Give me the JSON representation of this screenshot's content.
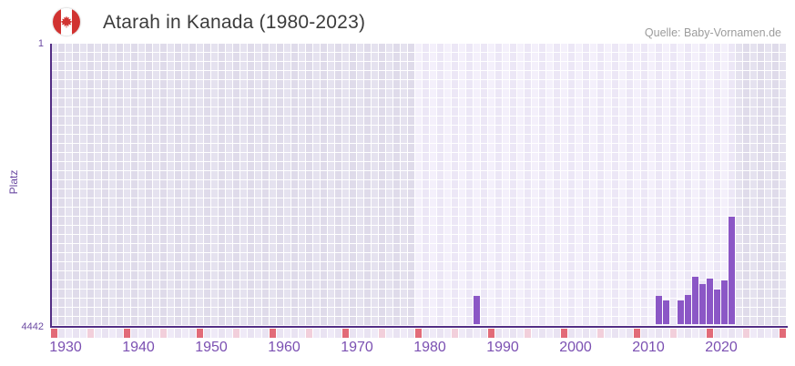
{
  "header": {
    "title": "Atarah in Kanada (1980-2023)",
    "source": "Quelle: Baby-Vornamen.de",
    "flag": "canada"
  },
  "chart_data": {
    "type": "bar",
    "title": "Atarah in Kanada (1980-2023)",
    "source": "Quelle: Baby-Vornamen.de",
    "xlabel": "",
    "ylabel": "Platz",
    "y_axis": {
      "min": 1,
      "max": 4442,
      "inverted": true,
      "tick_top": "1",
      "tick_bottom": "4442"
    },
    "x_axis": {
      "start": 1930,
      "end": 2030,
      "tick_labels": [
        "1930",
        "1940",
        "1950",
        "1960",
        "1970",
        "1980",
        "1990",
        "2000",
        "2010",
        "2020"
      ],
      "decade_marker_years": [
        1930,
        1940,
        1950,
        1960,
        1970,
        1980,
        1990,
        2000,
        2010,
        2020,
        2030
      ],
      "half_decade_marker_years": [
        1935,
        1945,
        1955,
        1965,
        1975,
        1985,
        1995,
        2005,
        2015,
        2025
      ]
    },
    "highlight_range": [
      1980,
      2023
    ],
    "grid": true,
    "legend": false,
    "points": [
      {
        "year": 1988,
        "rank": 3970
      },
      {
        "year": 2013,
        "rank": 3970
      },
      {
        "year": 2014,
        "rank": 4040
      },
      {
        "year": 2016,
        "rank": 4040
      },
      {
        "year": 2017,
        "rank": 3955
      },
      {
        "year": 2018,
        "rank": 3670
      },
      {
        "year": 2019,
        "rank": 3785
      },
      {
        "year": 2020,
        "rank": 3695
      },
      {
        "year": 2021,
        "rank": 3870
      },
      {
        "year": 2022,
        "rank": 3725
      },
      {
        "year": 2023,
        "rank": 2720
      }
    ]
  },
  "colors": {
    "bar": "#8b57c6",
    "axis_line": "#532e85",
    "x_tick_label": "#7b50b2",
    "y_tick_label": "#6b4aa2",
    "y_axis_title": "#6b4aa2",
    "title": "#3c3c3c",
    "source": "#9c9c9c",
    "flag_red": "#d13331",
    "decade_marker": "#e26b78",
    "half_decade_marker": "#f2cfdb",
    "strip_even": "#efeaf7",
    "strip_odd": "#e9e3f2",
    "highlight_col_even": "#f4f0fb",
    "highlight_col_odd": "#ece7f6",
    "outer_col_even": "#e5e2ef",
    "outer_col_odd": "#dfdbea"
  }
}
